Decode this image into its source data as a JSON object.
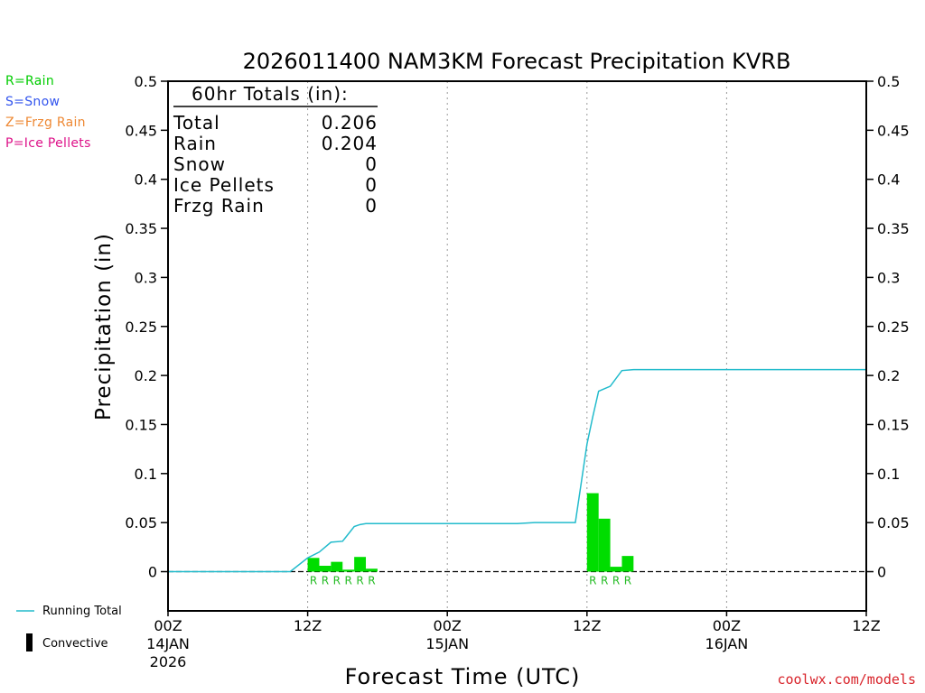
{
  "legend_types": [
    {
      "label": "R=Rain",
      "color": "#00cc00"
    },
    {
      "label": "S=Snow",
      "color": "#3355ee"
    },
    {
      "label": "Z=Frzg Rain",
      "color": "#ee8833"
    },
    {
      "label": "P=Ice Pellets",
      "color": "#dd1188"
    }
  ],
  "bottom_legend": {
    "running_total": "Running Total",
    "convective": "Convective"
  },
  "credit": "coolwx.com/models",
  "totals": {
    "heading": "60hr Totals (in):",
    "rows": [
      {
        "label": "Total",
        "value": "0.206"
      },
      {
        "label": "Rain",
        "value": "0.204"
      },
      {
        "label": "Snow",
        "value": "0"
      },
      {
        "label": "Ice Pellets",
        "value": "0"
      },
      {
        "label": "Frzg Rain",
        "value": "0"
      }
    ]
  },
  "colors": {
    "precip_bar": "#00dd00",
    "running_total": "#22bbcc",
    "type_label": "#22bb22"
  },
  "chart_data": {
    "type": "bar",
    "title": "2026011400 NAM3KM Forecast Precipitation KVRB",
    "xlabel": "Forecast Time (UTC)",
    "ylabel": "Precipitation (in)",
    "xlim": [
      0,
      60
    ],
    "ylim": [
      -0.04,
      0.5
    ],
    "y_ticks": [
      0,
      0.05,
      0.1,
      0.15,
      0.2,
      0.25,
      0.3,
      0.35,
      0.4,
      0.45,
      0.5
    ],
    "y_tick_labels": [
      "0",
      "0.05",
      "0.1",
      "0.15",
      "0.2",
      "0.25",
      "0.3",
      "0.35",
      "0.4",
      "0.45",
      "0.5"
    ],
    "x_ticks": [
      {
        "hour": 0,
        "label": "00Z",
        "date": "14JAN",
        "year": "2026"
      },
      {
        "hour": 12,
        "label": "12Z"
      },
      {
        "hour": 24,
        "label": "00Z",
        "date": "15JAN"
      },
      {
        "hour": 36,
        "label": "12Z"
      },
      {
        "hour": 48,
        "label": "00Z",
        "date": "16JAN"
      },
      {
        "hour": 60,
        "label": "12Z"
      }
    ],
    "vertical_grid_hours": [
      12,
      24,
      36,
      48
    ],
    "bars": [
      {
        "hour": 12,
        "value": 0.014,
        "ptype": "R"
      },
      {
        "hour": 13,
        "value": 0.006,
        "ptype": "R"
      },
      {
        "hour": 14,
        "value": 0.01,
        "ptype": "R"
      },
      {
        "hour": 15,
        "value": 0.002,
        "ptype": "R"
      },
      {
        "hour": 16,
        "value": 0.015,
        "ptype": "R"
      },
      {
        "hour": 17,
        "value": 0.003,
        "ptype": "R"
      },
      {
        "hour": 36,
        "value": 0.08,
        "ptype": "R"
      },
      {
        "hour": 37,
        "value": 0.054,
        "ptype": "R"
      },
      {
        "hour": 38,
        "value": 0.005,
        "ptype": "R"
      },
      {
        "hour": 39,
        "value": 0.016,
        "ptype": "R"
      }
    ],
    "running_total": {
      "x": [
        0,
        10.5,
        12,
        13,
        14,
        15,
        16,
        16.5,
        17,
        20,
        25,
        30,
        31.5,
        35,
        35.5,
        36,
        36.5,
        37,
        38,
        39,
        40,
        45,
        50,
        55,
        60
      ],
      "y": [
        0,
        0,
        0.014,
        0.02,
        0.03,
        0.031,
        0.046,
        0.048,
        0.049,
        0.049,
        0.049,
        0.049,
        0.05,
        0.05,
        0.09,
        0.13,
        0.158,
        0.184,
        0.189,
        0.205,
        0.206,
        0.206,
        0.206,
        0.206,
        0.206
      ]
    }
  }
}
